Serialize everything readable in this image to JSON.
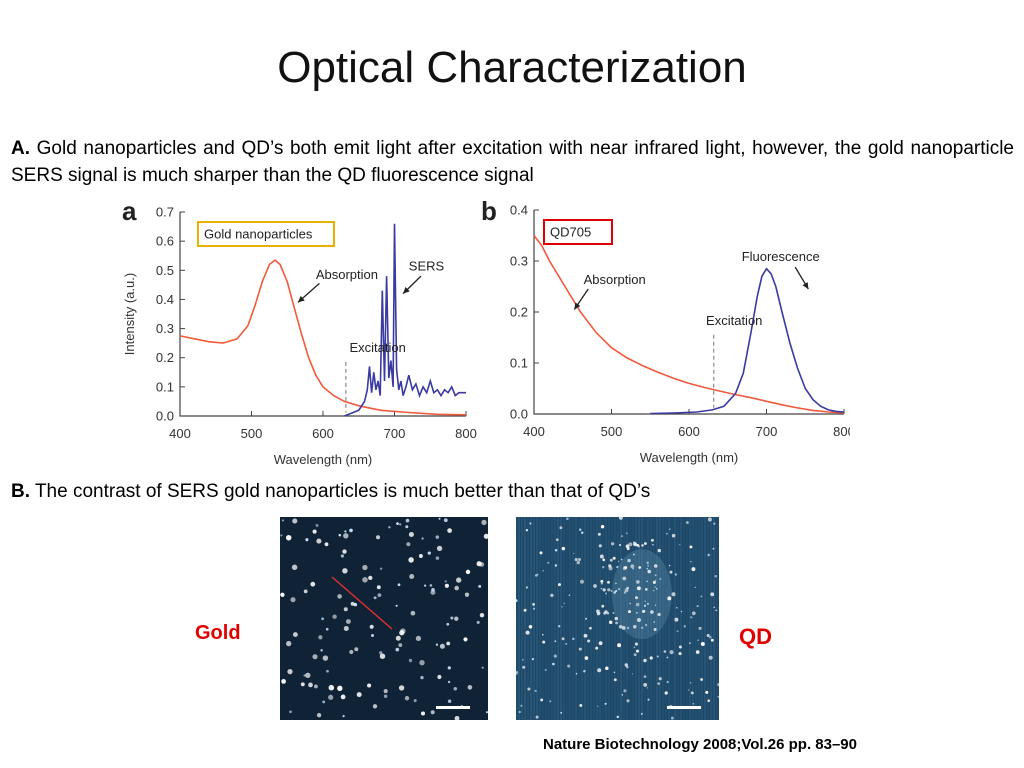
{
  "slide": {
    "title": "Optical Characterization",
    "para_a": {
      "label": "A.",
      "text": "Gold nanoparticles and QD’s both emit light after excitation with near infrared light, however, the gold nanoparticle SERS signal is much sharper than the QD fluorescence signal"
    },
    "para_b": {
      "label": "B.",
      "text": "The contrast of SERS gold nanoparticles is much better than that of QD’s"
    },
    "image_labels": {
      "gold": "Gold",
      "qd": "QD"
    },
    "citation": "Nature Biotechnology 2008;Vol.26 pp. 83–90"
  },
  "chart_data": [
    {
      "type": "line",
      "panel_letter": "a",
      "legend_box": "Gold nanoparticles",
      "legend_box_color": "#e8b000",
      "xlabel": "Wavelength (nm)",
      "ylabel": "Intensity (a.u.)",
      "xlim": [
        400,
        800
      ],
      "ylim": [
        0,
        0.7
      ],
      "xticks": [
        400,
        500,
        600,
        700,
        800
      ],
      "yticks": [
        0.0,
        0.1,
        0.2,
        0.3,
        0.4,
        0.5,
        0.6,
        0.7
      ],
      "series": [
        {
          "name": "Absorption",
          "color": "#f05a3c",
          "x": [
            400,
            420,
            440,
            460,
            480,
            495,
            505,
            515,
            525,
            533,
            540,
            550,
            560,
            570,
            580,
            590,
            600,
            615,
            630,
            650,
            680,
            720,
            760,
            800
          ],
          "y": [
            0.275,
            0.265,
            0.255,
            0.25,
            0.265,
            0.31,
            0.38,
            0.46,
            0.52,
            0.535,
            0.52,
            0.46,
            0.37,
            0.28,
            0.2,
            0.14,
            0.1,
            0.07,
            0.05,
            0.035,
            0.02,
            0.012,
            0.006,
            0.004
          ]
        },
        {
          "name": "SERS",
          "color": "#3a3aa0",
          "x": [
            630,
            640,
            650,
            658,
            662,
            665,
            668,
            671,
            674,
            677,
            680,
            683,
            686,
            689,
            692,
            695,
            698,
            700,
            703,
            706,
            709,
            712,
            716,
            720,
            725,
            730,
            735,
            740,
            745,
            750,
            755,
            760,
            765,
            770,
            775,
            780,
            785,
            790,
            795,
            800
          ],
          "y": [
            0.0,
            0.01,
            0.02,
            0.05,
            0.09,
            0.17,
            0.08,
            0.15,
            0.09,
            0.12,
            0.07,
            0.43,
            0.12,
            0.48,
            0.13,
            0.19,
            0.1,
            0.66,
            0.16,
            0.09,
            0.12,
            0.07,
            0.1,
            0.14,
            0.09,
            0.11,
            0.07,
            0.1,
            0.08,
            0.12,
            0.08,
            0.09,
            0.07,
            0.09,
            0.08,
            0.1,
            0.07,
            0.08,
            0.08,
            0.08
          ]
        }
      ],
      "annotations": [
        {
          "text": "Absorption",
          "x": 590,
          "y": 0.47
        },
        {
          "text": "SERS",
          "x": 720,
          "y": 0.5
        },
        {
          "text": "Excitation",
          "x": 637,
          "y": 0.22
        }
      ],
      "excitation_line": 632
    },
    {
      "type": "line",
      "panel_letter": "b",
      "legend_box": "QD705",
      "legend_box_color": "#e00000",
      "xlabel": "Wavelength (nm)",
      "ylabel": "",
      "xlim": [
        400,
        800
      ],
      "ylim": [
        0,
        0.4
      ],
      "xticks": [
        400,
        500,
        600,
        700,
        800
      ],
      "yticks": [
        0.0,
        0.1,
        0.2,
        0.3,
        0.4
      ],
      "series": [
        {
          "name": "Absorption",
          "color": "#f05a3c",
          "x": [
            400,
            410,
            420,
            430,
            440,
            450,
            460,
            470,
            480,
            500,
            520,
            540,
            560,
            580,
            600,
            620,
            640,
            660,
            680,
            700,
            720,
            740,
            760,
            780,
            800
          ],
          "y": [
            0.35,
            0.33,
            0.3,
            0.275,
            0.25,
            0.225,
            0.2,
            0.18,
            0.16,
            0.13,
            0.11,
            0.095,
            0.082,
            0.07,
            0.06,
            0.052,
            0.045,
            0.038,
            0.032,
            0.025,
            0.018,
            0.012,
            0.007,
            0.004,
            0.002
          ]
        },
        {
          "name": "Fluorescence",
          "color": "#3a3aa0",
          "x": [
            550,
            580,
            610,
            630,
            645,
            660,
            670,
            680,
            688,
            694,
            700,
            706,
            712,
            720,
            730,
            740,
            750,
            760,
            770,
            780,
            790,
            800
          ],
          "y": [
            0.001,
            0.002,
            0.004,
            0.008,
            0.015,
            0.04,
            0.08,
            0.16,
            0.23,
            0.27,
            0.285,
            0.275,
            0.25,
            0.2,
            0.14,
            0.09,
            0.05,
            0.028,
            0.015,
            0.008,
            0.005,
            0.004
          ]
        }
      ],
      "annotations": [
        {
          "text": "Absorption",
          "x": 464,
          "y": 0.255
        },
        {
          "text": "Fluorescence",
          "x": 668,
          "y": 0.3
        },
        {
          "text": "Excitation",
          "x": 622,
          "y": 0.175
        }
      ],
      "excitation_line": 632
    }
  ],
  "images": {
    "gold": {
      "background": "#0f2236",
      "seed": 11,
      "dot_count": 140,
      "scale_bar": true
    },
    "qd": {
      "background": "#1e4868",
      "seed": 29,
      "dot_count": 260,
      "scale_bar": true
    }
  }
}
